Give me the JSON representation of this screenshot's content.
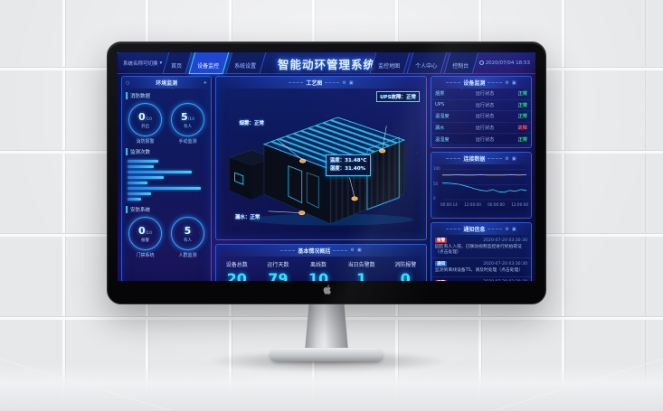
{
  "icons": {
    "dropdown": "▾",
    "circle": "○",
    "plus": "+",
    "gear": "⚙",
    "expand": "▣"
  },
  "header": {
    "system_select": "系统名称可切换",
    "tabs_left": [
      {
        "label": "首页",
        "active": false
      },
      {
        "label": "设备监控",
        "active": true
      },
      {
        "label": "系统设置",
        "active": false
      }
    ],
    "title": "智能动环管理系统",
    "tabs_right": [
      {
        "label": "监控地图",
        "active": false
      },
      {
        "label": "个人中心",
        "active": false
      },
      {
        "label": "控制台",
        "active": false
      }
    ],
    "clock": "2020/07/04 18:53"
  },
  "left_panel": {
    "title": "环境监测",
    "fire_section": {
      "title": "消防数据",
      "gauges": [
        {
          "value": "0",
          "suffix": "/10",
          "inner": "开启",
          "caption": "消防报警"
        },
        {
          "value": "5",
          "suffix": "/10",
          "inner": "有人",
          "caption": "手动监测"
        }
      ]
    },
    "bars_section": {
      "title": "监测次数"
    },
    "security_section": {
      "title": "安防系统",
      "gauges": [
        {
          "value": "0",
          "suffix": "/10",
          "inner": "报警",
          "caption": "门禁系统"
        },
        {
          "value": "5",
          "suffix": "",
          "inner": "有人",
          "caption": "人群监测"
        }
      ]
    }
  },
  "center": {
    "title": "工艺图",
    "callouts": {
      "smoke": "烟雾：正常",
      "ups": "UPS故障：正常",
      "temp_line1": "温度：31.48°C",
      "temp_line2": "湿度：31.40%",
      "leak": "漏水：正常"
    }
  },
  "summary": {
    "title": "基本情况概括",
    "items": [
      {
        "label": "设备总数",
        "value": "20"
      },
      {
        "label": "运行天数",
        "value": "79"
      },
      {
        "label": "离线数",
        "value": "10"
      },
      {
        "label": "当日告警数",
        "value": "1"
      },
      {
        "label": "消防报警",
        "value": "0"
      }
    ]
  },
  "right": {
    "status_panel": {
      "title": "设备监测",
      "rows": [
        {
          "name": "烟雾",
          "state": "运行状态",
          "status": "正常",
          "level": "ok"
        },
        {
          "name": "UPS",
          "state": "运行状态",
          "status": "正常",
          "level": "ok"
        },
        {
          "name": "温湿度",
          "state": "运行状态",
          "status": "正常",
          "level": "ok"
        },
        {
          "name": "漏水",
          "state": "运行状态",
          "status": "故障",
          "level": "alarm"
        },
        {
          "name": "温湿度",
          "state": "运行状态",
          "status": "正常",
          "level": "ok"
        }
      ]
    },
    "trend_panel": {
      "title": "连接数据"
    },
    "alarm_panel": {
      "title": "通知信息",
      "items": [
        {
          "tag": "报警",
          "level": "alarm",
          "time": "2020-07-20 03:30:30",
          "text": "园区有人入侵，已联动视频监控进行抓拍取证（点击处理）"
        },
        {
          "tag": "通知",
          "level": "info",
          "time": "2020-07-20 03:30:30",
          "text": "监测到离线设备TS，请及时处理（点击处理）"
        },
        {
          "tag": "报警",
          "level": "alarm",
          "time": "2020-07-20 03:30:30",
          "text": "烟雾浓度超标，请及时排查（点击处理）"
        }
      ]
    }
  },
  "chart_data": [
    {
      "type": "bar",
      "orientation": "horizontal",
      "title": "监测次数",
      "values": [
        40,
        34,
        82,
        46,
        26,
        94,
        30,
        18
      ],
      "xlim": [
        0,
        100
      ]
    },
    {
      "type": "line",
      "title": "连接数据",
      "x_labels": [
        "00:00:14",
        "12:00:00",
        "00:00:00",
        "12:00:00"
      ],
      "y_labels": [
        "100",
        "50",
        "0"
      ],
      "ylim": [
        0,
        100
      ],
      "grid": true,
      "legend": "none",
      "series": [
        {
          "name": "上限",
          "color": "#f5c842",
          "values": [
            80,
            80,
            81,
            80,
            80,
            81,
            80,
            80,
            80,
            81,
            80,
            81
          ]
        },
        {
          "name": "实时",
          "color": "#23d5ff",
          "values": [
            55,
            54,
            52,
            50,
            45,
            40,
            34,
            30,
            28,
            33,
            26,
            24,
            30,
            27,
            33,
            30
          ]
        }
      ]
    }
  ]
}
